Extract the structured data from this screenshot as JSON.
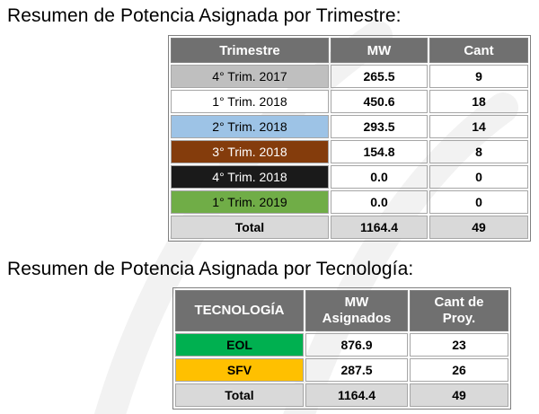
{
  "headings": {
    "trimestre": "Resumen de Potencia Asignada por Trimestre:",
    "tecnologia": "Resumen de Potencia Asignada por Tecnología:"
  },
  "table_trimestre": {
    "headers": [
      "Trimestre",
      "MW",
      "Cant"
    ],
    "rows": [
      {
        "period": "4° Trim. 2017",
        "mw": "265.5",
        "cant": "9",
        "bg": "#bfbfbf",
        "fg": "#000000"
      },
      {
        "period": "1° Trim. 2018",
        "mw": "450.6",
        "cant": "18",
        "bg": "#ffffff",
        "fg": "#000000"
      },
      {
        "period": "2° Trim. 2018",
        "mw": "293.5",
        "cant": "14",
        "bg": "#9dc3e6",
        "fg": "#000000"
      },
      {
        "period": "3° Trim. 2018",
        "mw": "154.8",
        "cant": "8",
        "bg": "#843c0c",
        "fg": "#ffffff"
      },
      {
        "period": "4° Trim. 2018",
        "mw": "0.0",
        "cant": "0",
        "bg": "#1a1a1a",
        "fg": "#ffffff"
      },
      {
        "period": "1° Trim. 2019",
        "mw": "0.0",
        "cant": "0",
        "bg": "#70ad47",
        "fg": "#000000"
      }
    ],
    "total": {
      "label": "Total",
      "mw": "1164.4",
      "cant": "49"
    }
  },
  "table_tecnologia": {
    "headers": [
      "TECNOLOGÍA",
      "MW Asignados",
      "Cant de Proy."
    ],
    "rows": [
      {
        "tec": "EOL",
        "mw": "876.9",
        "cant": "23",
        "bg": "#00b050"
      },
      {
        "tec": "SFV",
        "mw": "287.5",
        "cant": "26",
        "bg": "#ffc000"
      }
    ],
    "total": {
      "label": "Total",
      "mw": "1164.4",
      "cant": "49"
    }
  }
}
